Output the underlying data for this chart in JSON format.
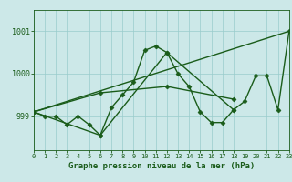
{
  "xlabel": "Graphe pression niveau de la mer (hPa)",
  "background_color": "#cce8e8",
  "plot_bg_color": "#cce8e8",
  "grid_color": "#99cccc",
  "line_color": "#1a5c1a",
  "x_ticks": [
    0,
    1,
    2,
    3,
    4,
    5,
    6,
    7,
    8,
    9,
    10,
    11,
    12,
    13,
    14,
    15,
    16,
    17,
    18,
    19,
    20,
    21,
    22,
    23
  ],
  "y_ticks": [
    999,
    1000,
    1001
  ],
  "ylim": [
    998.2,
    1001.5
  ],
  "xlim": [
    0,
    23
  ],
  "series": [
    {
      "x": [
        0,
        1,
        2,
        3,
        4,
        5,
        6,
        7,
        8,
        9,
        10,
        11,
        12,
        13,
        14,
        15,
        16,
        17,
        18,
        19,
        20,
        21,
        22,
        23
      ],
      "y": [
        999.1,
        999.0,
        999.0,
        998.8,
        999.0,
        998.8,
        998.55,
        999.2,
        999.5,
        999.8,
        1000.55,
        1000.65,
        1000.5,
        1000.0,
        999.7,
        999.1,
        998.85,
        998.85,
        999.15,
        999.35,
        999.95,
        999.95,
        999.15,
        1001.0
      ],
      "marker": "D",
      "lw": 1.0
    },
    {
      "x": [
        0,
        6,
        12,
        18
      ],
      "y": [
        999.1,
        998.55,
        1000.5,
        999.15
      ],
      "marker": "D",
      "lw": 1.0
    },
    {
      "x": [
        0,
        6,
        12,
        18
      ],
      "y": [
        999.1,
        999.55,
        999.7,
        999.4
      ],
      "marker": "D",
      "lw": 1.0
    },
    {
      "x": [
        0,
        23
      ],
      "y": [
        999.1,
        1001.0
      ],
      "marker": null,
      "lw": 1.0
    }
  ]
}
